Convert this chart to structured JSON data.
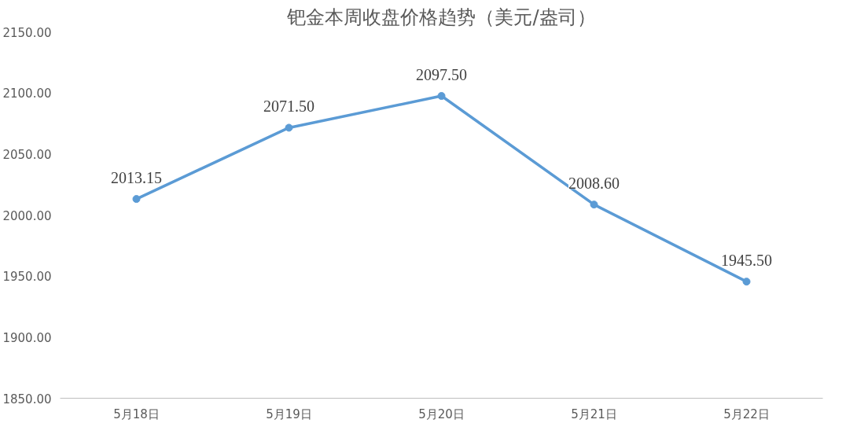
{
  "chart_data": {
    "type": "line",
    "title": "钯金本周收盘价格趋势（美元/盎司）",
    "categories": [
      "5月18日",
      "5月19日",
      "5月20日",
      "5月21日",
      "5月22日"
    ],
    "series": [
      {
        "color": "#5b9bd5",
        "values": [
          2013.15,
          2071.5,
          2097.5,
          2008.6,
          1945.5
        ],
        "value_labels": [
          "2013.15",
          "2071.50",
          "2097.50",
          "2008.60",
          "1945.50"
        ]
      }
    ],
    "ylim": [
      1850,
      2150
    ],
    "yticks": [
      {
        "value": 1850,
        "label": "1850.00"
      },
      {
        "value": 1900,
        "label": "1900.00"
      },
      {
        "value": 1950,
        "label": "1950.00"
      },
      {
        "value": 2000,
        "label": "2000.00"
      },
      {
        "value": 2050,
        "label": "2050.00"
      },
      {
        "value": 2100,
        "label": "2100.00"
      },
      {
        "value": 2150,
        "label": "2150.00"
      }
    ],
    "marker": "circle",
    "line_style": "solid",
    "grid": false
  }
}
